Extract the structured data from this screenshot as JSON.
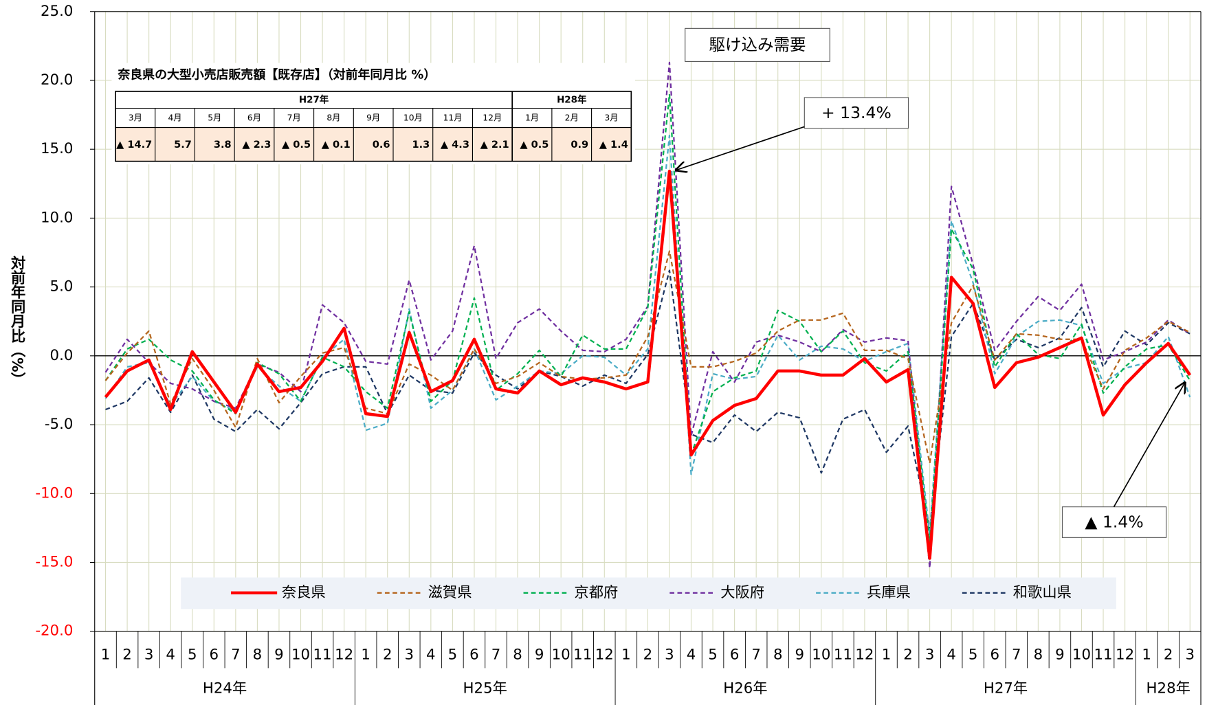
{
  "chart_data": {
    "type": "line",
    "y_label": "対前年同月比（%）",
    "categories": [
      "1",
      "2",
      "3",
      "4",
      "5",
      "6",
      "7",
      "8",
      "9",
      "10",
      "11",
      "12",
      "1",
      "2",
      "3",
      "4",
      "5",
      "6",
      "7",
      "8",
      "9",
      "10",
      "11",
      "12",
      "1",
      "2",
      "3",
      "4",
      "5",
      "6",
      "7",
      "8",
      "9",
      "10",
      "11",
      "12",
      "1",
      "2",
      "3",
      "4",
      "5",
      "6",
      "7",
      "8",
      "9",
      "10",
      "11",
      "12",
      "1",
      "2",
      "3"
    ],
    "groups": [
      "H24年",
      "H25年",
      "H26年",
      "H27年",
      "H28年"
    ],
    "ylim": [
      -20,
      25
    ],
    "yticks": [
      {
        "value": 25,
        "label": "25.0",
        "color": "#000000"
      },
      {
        "value": 20,
        "label": "20.0",
        "color": "#000000"
      },
      {
        "value": 15,
        "label": "15.0",
        "color": "#000000"
      },
      {
        "value": 10,
        "label": "10.0",
        "color": "#000000"
      },
      {
        "value": 5,
        "label": "5.0",
        "color": "#000000"
      },
      {
        "value": 0,
        "label": "0.0",
        "color": "#000000"
      },
      {
        "value": -5,
        "label": "-5.0",
        "color": "#000000"
      },
      {
        "value": -10,
        "label": "-10.0",
        "color": "#ff0000"
      },
      {
        "value": -15,
        "label": "-15.0",
        "color": "#ff0000"
      },
      {
        "value": -20,
        "label": "-20.0",
        "color": "#ff0000"
      }
    ],
    "grid": true,
    "series": [
      {
        "name": "奈良県",
        "color": "#ff0000",
        "style": "solid",
        "values": [
          -3.0,
          -1.1,
          -0.3,
          -3.9,
          0.3,
          -1.9,
          -4.1,
          -0.6,
          -2.6,
          -2.3,
          -0.4,
          2.0,
          -4.2,
          -4.4,
          1.7,
          -2.6,
          -1.8,
          1.2,
          -2.4,
          -2.7,
          -1.1,
          -2.1,
          -1.6,
          -1.9,
          -2.4,
          -1.9,
          13.4,
          -7.2,
          -4.7,
          -3.6,
          -3.1,
          -1.1,
          -1.1,
          -1.4,
          -1.4,
          -0.2,
          -1.9,
          -1.0,
          -14.7,
          5.7,
          3.8,
          -2.3,
          -0.5,
          -0.1,
          0.6,
          1.3,
          -4.3,
          -2.1,
          -0.5,
          0.9,
          -1.4
        ]
      },
      {
        "name": "滋賀県",
        "color": "#b5651d",
        "style": "dashed",
        "values": [
          -1.8,
          0.2,
          1.8,
          -3.5,
          -0.2,
          -2.5,
          -5.2,
          -0.2,
          -3.4,
          -1.5,
          0.2,
          0.6,
          -3.8,
          -4.2,
          -0.6,
          -1.4,
          -2.5,
          0.5,
          -2.0,
          -1.5,
          -0.5,
          -1.5,
          -1.7,
          -1.6,
          -1.4,
          1.4,
          7.6,
          -0.8,
          -0.8,
          -0.4,
          0.2,
          1.8,
          2.6,
          2.6,
          3.1,
          0.4,
          0.4,
          -0.2,
          -7.8,
          2.4,
          5.1,
          -0.3,
          1.6,
          1.5,
          1.2,
          1.2,
          -2.4,
          0.4,
          1.3,
          2.5,
          1.7
        ]
      },
      {
        "name": "京都府",
        "color": "#00b050",
        "style": "dashed",
        "values": [
          -1.8,
          0.5,
          1.2,
          -0.3,
          -1.1,
          -3.2,
          -4.2,
          -0.5,
          -1.3,
          -3.3,
          -0.1,
          -0.8,
          -2.6,
          -3.8,
          3.2,
          -3.3,
          -1.8,
          4.2,
          -2.5,
          -1.3,
          0.4,
          -1.5,
          1.5,
          0.5,
          0.5,
          3.5,
          19.0,
          -7.2,
          -2.6,
          -1.6,
          -1.1,
          3.3,
          2.5,
          0.3,
          1.8,
          -0.5,
          -1.1,
          0.3,
          -13.5,
          9.2,
          6.3,
          -0.8,
          1.6,
          0.1,
          -0.2,
          2.3,
          -2.7,
          -0.8,
          0.5,
          0.8,
          -1.8
        ]
      },
      {
        "name": "大阪府",
        "color": "#7030a0",
        "style": "dashed",
        "values": [
          -1.2,
          1.2,
          -0.5,
          -2.0,
          -2.4,
          -3.3,
          -3.8,
          -0.6,
          -1.2,
          -2.6,
          3.7,
          2.4,
          -0.4,
          -0.6,
          5.5,
          -0.3,
          1.8,
          8.0,
          -0.2,
          2.4,
          3.4,
          1.8,
          0.4,
          0.3,
          1.2,
          3.6,
          21.3,
          -5.8,
          0.3,
          -1.9,
          1.0,
          1.5,
          1.0,
          0.3,
          1.9,
          1.0,
          1.3,
          1.1,
          -15.4,
          12.3,
          6.6,
          0.4,
          2.5,
          4.3,
          3.3,
          5.2,
          -0.3,
          0.3,
          1.0,
          2.6,
          1.6
        ]
      },
      {
        "name": "兵庫県",
        "color": "#4bacc6",
        "style": "dashed",
        "values": [
          -3.1,
          -0.8,
          -0.5,
          -3.6,
          -1.5,
          -3.3,
          -4.0,
          -0.8,
          -2.2,
          -3.3,
          -0.1,
          1.2,
          -5.4,
          -4.9,
          3.4,
          -3.8,
          -2.5,
          0.5,
          -3.2,
          -2.2,
          -1.1,
          -1.3,
          0.0,
          -0.1,
          -1.4,
          0.5,
          16.0,
          -8.6,
          -1.3,
          -1.7,
          -1.5,
          1.5,
          -0.3,
          0.7,
          0.5,
          -0.4,
          0.3,
          0.9,
          -13.0,
          9.8,
          5.3,
          -1.3,
          1.4,
          2.5,
          2.6,
          2.2,
          -2.0,
          -0.9,
          -0.5,
          1.4,
          -3.0
        ]
      },
      {
        "name": "和歌山県",
        "color": "#1f3864",
        "style": "dashed",
        "values": [
          -3.9,
          -3.3,
          -1.6,
          -4.1,
          -1.4,
          -4.6,
          -5.5,
          -3.9,
          -5.3,
          -3.4,
          -1.3,
          -0.8,
          -0.8,
          -4.2,
          -1.4,
          -2.5,
          -2.7,
          0.2,
          -1.4,
          -2.4,
          -1.1,
          -1.5,
          -2.2,
          -1.4,
          -2.0,
          0.1,
          6.2,
          -5.7,
          -6.3,
          -4.3,
          -5.5,
          -4.1,
          -4.5,
          -8.5,
          -4.6,
          -3.9,
          -7.0,
          -5.1,
          -12.6,
          1.4,
          3.8,
          -0.3,
          1.2,
          0.6,
          1.3,
          3.5,
          -0.8,
          1.8,
          0.8,
          2.4,
          1.6
        ]
      }
    ],
    "annotations": [
      "駆け込み需要",
      "+ 13.4%",
      "▲ 1.4%"
    ],
    "inset_table": {
      "title": "奈良県の大型小売店販売額【既存店】（対前年同月比 %）",
      "years": [
        "H27年",
        "H28年"
      ],
      "months": [
        "3月",
        "4月",
        "5月",
        "6月",
        "7月",
        "8月",
        "9月",
        "10月",
        "11月",
        "12月",
        "1月",
        "2月",
        "3月"
      ],
      "cells": [
        "▲ 14.7",
        "5.7",
        "3.8",
        "▲ 2.3",
        "▲ 0.5",
        "▲ 0.1",
        "0.6",
        "1.3",
        "▲ 4.3",
        "▲ 2.1",
        "▲ 0.5",
        "0.9",
        "▲ 1.4"
      ]
    }
  }
}
